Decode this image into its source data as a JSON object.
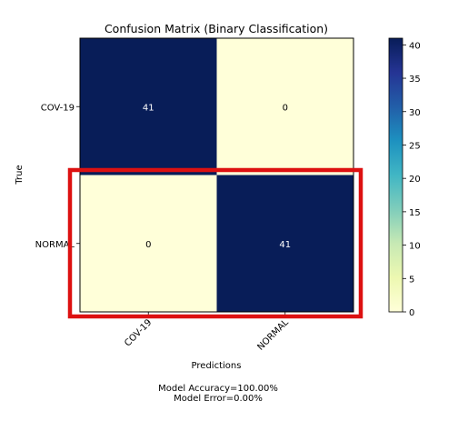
{
  "chart_data": {
    "type": "heatmap",
    "title": "Confusion Matrix (Binary Classification)",
    "xlabel": "Predictions",
    "ylabel": "True",
    "x_categories": [
      "COV-19",
      "NORMAL"
    ],
    "y_categories": [
      "COV-19",
      "NORMAL"
    ],
    "values": [
      [
        41,
        0
      ],
      [
        0,
        41
      ]
    ],
    "colormap": "YlGnBu",
    "colorbar": {
      "range": [
        0,
        41
      ],
      "ticks": [
        0,
        5,
        10,
        15,
        20,
        25,
        30,
        35,
        40
      ]
    },
    "highlight": {
      "row": "NORMAL",
      "color": "#dd1111"
    }
  },
  "footer": {
    "accuracy": "Model Accuracy=100.00%",
    "error": "Model Error=0.00%"
  }
}
